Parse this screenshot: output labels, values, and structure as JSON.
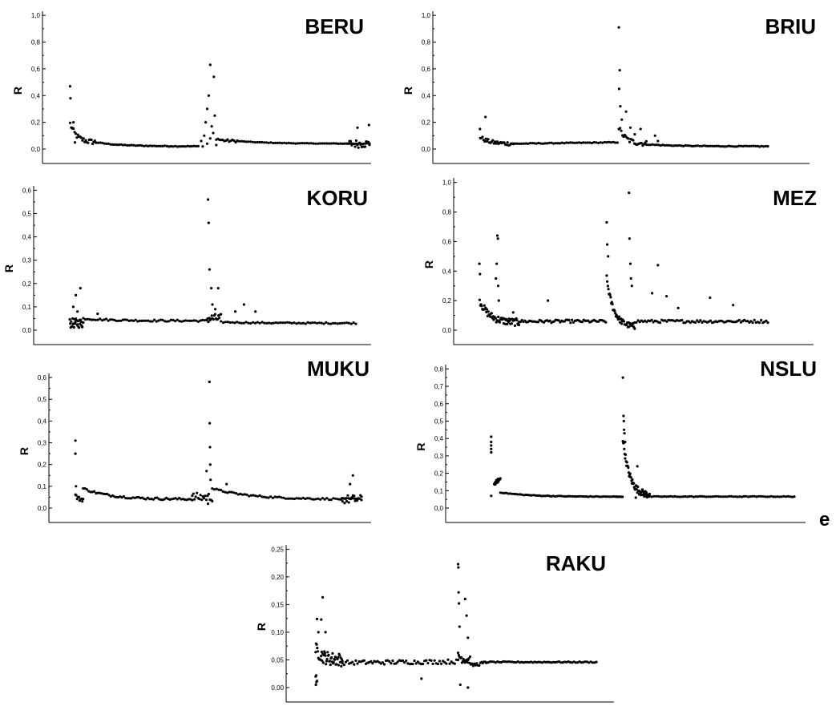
{
  "figure": {
    "xlabel_text": "e"
  },
  "chart_data": [
    {
      "type": "scatter",
      "title": "BERU",
      "ylabel": "R",
      "ylim": [
        0,
        1.0
      ],
      "yticks": [
        0,
        0.2,
        0.4,
        0.6,
        0.8,
        1.0
      ],
      "ytick_labels": [
        "0,0",
        "0,2",
        "0,4",
        "0,6",
        "0,8",
        "1,0"
      ],
      "xlim": [
        0,
        100
      ],
      "segments": [
        {
          "x": [
            0.4,
            9
          ],
          "y": [
            0.19,
            0.05
          ],
          "kind": "decay",
          "noise": 0.02,
          "n": 24
        },
        {
          "x": [
            9,
            43
          ],
          "y": [
            0.05,
            0.02
          ],
          "kind": "decay",
          "noise": 0.003,
          "n": 50
        },
        {
          "x": [
            49,
            56
          ],
          "y": [
            0.08,
            0.06
          ],
          "kind": "decay",
          "noise": 0.01,
          "n": 14
        },
        {
          "x": [
            56,
            100
          ],
          "y": [
            0.06,
            0.04
          ],
          "kind": "decay",
          "noise": 0.002,
          "n": 60
        },
        {
          "x": [
            93,
            100
          ],
          "y": [
            0.04,
            0.04
          ],
          "kind": "flat",
          "noise": 0.03,
          "n": 20
        }
      ],
      "points": [
        [
          0.4,
          0.47
        ],
        [
          0.5,
          0.38
        ],
        [
          1.5,
          0.2
        ],
        [
          1,
          0.16
        ],
        [
          2,
          0.05
        ],
        [
          44,
          0.06
        ],
        [
          45,
          0.1
        ],
        [
          46.5,
          0.4
        ],
        [
          47,
          0.63
        ],
        [
          48.2,
          0.54
        ],
        [
          46,
          0.3
        ],
        [
          47.5,
          0.17
        ],
        [
          48,
          0.12
        ],
        [
          44.5,
          0.02
        ],
        [
          46,
          0.04
        ],
        [
          47,
          0.08
        ],
        [
          49,
          0.03
        ],
        [
          45.5,
          0.2
        ],
        [
          48.5,
          0.25
        ],
        [
          99.8,
          0.18
        ],
        [
          96,
          0.16
        ]
      ]
    },
    {
      "type": "scatter",
      "title": "BRIU",
      "ylabel": "R",
      "ylim": [
        0,
        1.0
      ],
      "yticks": [
        0,
        0.2,
        0.4,
        0.6,
        0.8,
        1.0
      ],
      "ytick_labels": [
        "0,0",
        "0,2",
        "0,4",
        "0,6",
        "0,8",
        "1,0"
      ],
      "xlim": [
        0,
        100
      ],
      "segments": [
        {
          "x": [
            0.6,
            12
          ],
          "y": [
            0.09,
            0.04
          ],
          "kind": "decay",
          "noise": 0.015,
          "n": 30
        },
        {
          "x": [
            12,
            48
          ],
          "y": [
            0.04,
            0.05
          ],
          "kind": "linear",
          "noise": 0.003,
          "n": 50
        },
        {
          "x": [
            48.5,
            58
          ],
          "y": [
            0.16,
            0.04
          ],
          "kind": "decay",
          "noise": 0.02,
          "n": 24
        },
        {
          "x": [
            58,
            100
          ],
          "y": [
            0.035,
            0.02
          ],
          "kind": "decay",
          "noise": 0.003,
          "n": 60
        }
      ],
      "points": [
        [
          0.5,
          0.15
        ],
        [
          2.4,
          0.24
        ],
        [
          48.5,
          0.91
        ],
        [
          48.8,
          0.59
        ],
        [
          48.6,
          0.45
        ],
        [
          49,
          0.32
        ],
        [
          49.5,
          0.22
        ],
        [
          51,
          0.28
        ],
        [
          52.5,
          0.16
        ],
        [
          54,
          0.11
        ],
        [
          56,
          0.15
        ],
        [
          61,
          0.1
        ],
        [
          62,
          0.06
        ]
      ]
    },
    {
      "type": "scatter",
      "title": "KORU",
      "ylabel": "R",
      "ylim": [
        0,
        0.6
      ],
      "yticks": [
        0,
        0.1,
        0.2,
        0.3,
        0.4,
        0.5,
        0.6
      ],
      "ytick_labels": [
        "0,0",
        "0,1",
        "0,2",
        "0,3",
        "0,4",
        "0,5",
        "0,6"
      ],
      "xlim": [
        0,
        100
      ],
      "segments": [
        {
          "x": [
            0.3,
            5
          ],
          "y": [
            0.03,
            0.03
          ],
          "kind": "flat",
          "noise": 0.02,
          "n": 30
        },
        {
          "x": [
            5,
            48
          ],
          "y": [
            0.05,
            0.04
          ],
          "kind": "decay",
          "noise": 0.004,
          "n": 60
        },
        {
          "x": [
            48,
            53
          ],
          "y": [
            0.05,
            0.05
          ],
          "kind": "flat",
          "noise": 0.02,
          "n": 18
        },
        {
          "x": [
            53,
            100
          ],
          "y": [
            0.035,
            0.03
          ],
          "kind": "decay",
          "noise": 0.003,
          "n": 60
        }
      ],
      "points": [
        [
          2.4,
          0.15
        ],
        [
          4,
          0.18
        ],
        [
          1.5,
          0.1
        ],
        [
          3,
          0.08
        ],
        [
          10,
          0.07
        ],
        [
          48.5,
          0.56
        ],
        [
          48.7,
          0.46
        ],
        [
          49,
          0.26
        ],
        [
          49.6,
          0.18
        ],
        [
          50,
          0.11
        ],
        [
          52,
          0.18
        ],
        [
          51,
          0.09
        ],
        [
          58,
          0.08
        ],
        [
          61,
          0.11
        ],
        [
          65,
          0.08
        ]
      ]
    },
    {
      "type": "scatter",
      "title": "MEZ",
      "ylabel": "R",
      "ylim": [
        0,
        1.0
      ],
      "yticks": [
        0,
        0.2,
        0.4,
        0.6,
        0.8,
        1.0
      ],
      "ytick_labels": [
        "0,0",
        "0,2",
        "0,4",
        "0,6",
        "0,8",
        "1,0"
      ],
      "xlim": [
        0,
        100
      ],
      "segments": [
        {
          "x": [
            0.4,
            14
          ],
          "y": [
            0.2,
            0.05
          ],
          "kind": "decay",
          "noise": 0.025,
          "n": 60
        },
        {
          "x": [
            14,
            44
          ],
          "y": [
            0.06,
            0.06
          ],
          "kind": "flat",
          "noise": 0.01,
          "n": 60
        },
        {
          "x": [
            44.3,
            54
          ],
          "y": [
            0.35,
            0.02
          ],
          "kind": "decay",
          "noise": 0.02,
          "n": 50
        },
        {
          "x": [
            54,
            100
          ],
          "y": [
            0.06,
            0.06
          ],
          "kind": "flat",
          "noise": 0.01,
          "n": 80
        }
      ],
      "points": [
        [
          0.3,
          0.45
        ],
        [
          0.5,
          0.38
        ],
        [
          6.5,
          0.64
        ],
        [
          6.7,
          0.62
        ],
        [
          6.3,
          0.45
        ],
        [
          6,
          0.35
        ],
        [
          6.8,
          0.3
        ],
        [
          7,
          0.2
        ],
        [
          12,
          0.12
        ],
        [
          24,
          0.2
        ],
        [
          44.3,
          0.73
        ],
        [
          44.5,
          0.58
        ],
        [
          44.8,
          0.5
        ],
        [
          52,
          0.93
        ],
        [
          52.2,
          0.62
        ],
        [
          52.5,
          0.45
        ],
        [
          52.7,
          0.35
        ],
        [
          53,
          0.3
        ],
        [
          62,
          0.44
        ],
        [
          65,
          0.23
        ],
        [
          69,
          0.15
        ],
        [
          80,
          0.22
        ],
        [
          88,
          0.17
        ],
        [
          60,
          0.25
        ]
      ]
    },
    {
      "type": "scatter",
      "title": "MUKU",
      "ylabel": "R",
      "ylim": [
        0,
        0.6
      ],
      "yticks": [
        0,
        0.1,
        0.2,
        0.3,
        0.4,
        0.5,
        0.6
      ],
      "ytick_labels": [
        "0,0",
        "0,1",
        "0,2",
        "0,3",
        "0,4",
        "0,5",
        "0,6"
      ],
      "xlim": [
        0,
        100
      ],
      "segments": [
        {
          "x": [
            0.3,
            3
          ],
          "y": [
            0.06,
            0.04
          ],
          "kind": "decay",
          "noise": 0.01,
          "n": 10
        },
        {
          "x": [
            3,
            41
          ],
          "y": [
            0.09,
            0.04
          ],
          "kind": "decay",
          "noise": 0.005,
          "n": 60
        },
        {
          "x": [
            41,
            48
          ],
          "y": [
            0.05,
            0.05
          ],
          "kind": "flat",
          "noise": 0.02,
          "n": 18
        },
        {
          "x": [
            48,
            100
          ],
          "y": [
            0.09,
            0.04
          ],
          "kind": "decay",
          "noise": 0.004,
          "n": 70
        },
        {
          "x": [
            93,
            100
          ],
          "y": [
            0.04,
            0.04
          ],
          "kind": "flat",
          "noise": 0.02,
          "n": 20
        }
      ],
      "points": [
        [
          0.3,
          0.31
        ],
        [
          0.3,
          0.25
        ],
        [
          0.5,
          0.1
        ],
        [
          46,
          0.17
        ],
        [
          47,
          0.58
        ],
        [
          47.1,
          0.39
        ],
        [
          47.2,
          0.28
        ],
        [
          47.3,
          0.2
        ],
        [
          47.4,
          0.13
        ],
        [
          46.5,
          0.02
        ],
        [
          53,
          0.11
        ],
        [
          97,
          0.15
        ],
        [
          96,
          0.11
        ]
      ]
    },
    {
      "type": "scatter",
      "title": "NSLU",
      "ylabel": "R",
      "ylim": [
        0,
        0.8
      ],
      "yticks": [
        0,
        0.1,
        0.2,
        0.3,
        0.4,
        0.5,
        0.6,
        0.7,
        0.8
      ],
      "ytick_labels": [
        "0,0",
        "0,1",
        "0,2",
        "0,3",
        "0,4",
        "0,5",
        "0,6",
        "0,7",
        "0,8"
      ],
      "xlim": [
        0,
        100
      ],
      "segments": [
        {
          "x": [
            2.5,
            4.5
          ],
          "y": [
            0.14,
            0.17
          ],
          "kind": "linear",
          "noise": 0.01,
          "n": 20
        },
        {
          "x": [
            4.5,
            42
          ],
          "y": [
            0.09,
            0.065
          ],
          "kind": "decay",
          "noise": 0.002,
          "n": 60
        },
        {
          "x": [
            42,
            44.2
          ],
          "y": [
            0.065,
            0.065
          ],
          "kind": "flat",
          "noise": 0.001,
          "n": 6
        },
        {
          "x": [
            44.3,
            53
          ],
          "y": [
            0.4,
            0.07
          ],
          "kind": "decay",
          "noise": 0.02,
          "n": 60
        },
        {
          "x": [
            53,
            100
          ],
          "y": [
            0.066,
            0.066
          ],
          "kind": "flat",
          "noise": 0.002,
          "n": 70
        }
      ],
      "points": [
        [
          1.5,
          0.41
        ],
        [
          1.5,
          0.38
        ],
        [
          1.5,
          0.36
        ],
        [
          1.5,
          0.34
        ],
        [
          1.5,
          0.32
        ],
        [
          1.5,
          0.07
        ],
        [
          44.3,
          0.75
        ],
        [
          44.5,
          0.53
        ],
        [
          44.6,
          0.5
        ],
        [
          44.7,
          0.45
        ],
        [
          44.8,
          0.43
        ],
        [
          45,
          0.38
        ],
        [
          49,
          0.24
        ],
        [
          47.5,
          0.14
        ],
        [
          48.5,
          0.06
        ]
      ]
    },
    {
      "type": "scatter",
      "title": "RAKU",
      "ylabel": "R",
      "ylim": [
        0,
        0.25
      ],
      "yticks": [
        0,
        0.05,
        0.1,
        0.15,
        0.2,
        0.25
      ],
      "ytick_labels": [
        "0,00",
        "0,05",
        "0,10",
        "0,15",
        "0,20",
        "0,25"
      ],
      "xlim": [
        0,
        100
      ],
      "segments": [
        {
          "x": [
            0.5,
            10
          ],
          "y": [
            0.07,
            0.05
          ],
          "kind": "decay",
          "noise": 0.012,
          "n": 50
        },
        {
          "x": [
            10,
            51
          ],
          "y": [
            0.045,
            0.047
          ],
          "kind": "linear",
          "noise": 0.004,
          "n": 70
        },
        {
          "x": [
            51,
            55.5
          ],
          "y": [
            0.06,
            0.05
          ],
          "kind": "decay",
          "noise": 0.008,
          "n": 20
        },
        {
          "x": [
            55.5,
            61
          ],
          "y": [
            0.04,
            0.045
          ],
          "kind": "linear",
          "noise": 0.003,
          "n": 14
        },
        {
          "x": [
            61,
            100
          ],
          "y": [
            0.046,
            0.046
          ],
          "kind": "flat",
          "noise": 0.001,
          "n": 60
        }
      ],
      "points": [
        [
          0.6,
          0.005
        ],
        [
          0.8,
          0.01
        ],
        [
          1,
          0.012
        ],
        [
          0.5,
          0.02
        ],
        [
          0.7,
          0.022
        ],
        [
          1,
          0.124
        ],
        [
          2.5,
          0.123
        ],
        [
          3,
          0.163
        ],
        [
          1.5,
          0.1
        ],
        [
          4,
          0.1
        ],
        [
          51,
          0.223
        ],
        [
          51.1,
          0.217
        ],
        [
          51.2,
          0.172
        ],
        [
          51.3,
          0.152
        ],
        [
          51.5,
          0.11
        ],
        [
          53.5,
          0.16
        ],
        [
          54,
          0.13
        ],
        [
          54.5,
          0.09
        ],
        [
          51.8,
          0.005
        ],
        [
          54.5,
          0.0
        ],
        [
          38,
          0.016
        ]
      ]
    }
  ]
}
